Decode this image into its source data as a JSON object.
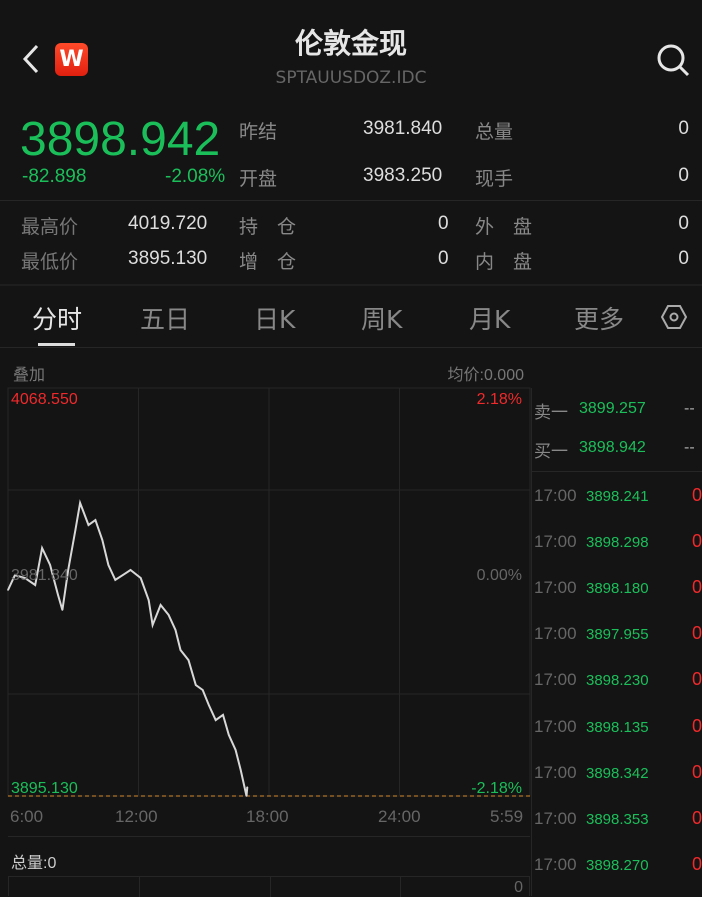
{
  "header": {
    "title": "伦敦金现",
    "code": "SPTAUUSDOZ.IDC",
    "logo": "W",
    "back_icon": "chevron-left-icon",
    "search_icon": "search-icon"
  },
  "quote": {
    "price": "3898.942",
    "change": "-82.898",
    "change_pct": "-2.08%",
    "prev_close_label": "昨结",
    "prev_close": "3981.840",
    "open_label": "开盘",
    "open": "3983.250",
    "volume_label": "总量",
    "volume": "0",
    "last_vol_label": "现手",
    "last_vol": "0",
    "high_label": "最高价",
    "high": "4019.720",
    "low_label": "最低价",
    "low": "3895.130",
    "oi_label": "持　仓",
    "oi": "0",
    "oi_chg_label": "增　仓",
    "oi_chg": "0",
    "outer_label": "外　盘",
    "outer": "0",
    "inner_label": "内　盘",
    "inner": "0"
  },
  "tabs": [
    {
      "label": "分时",
      "active": true
    },
    {
      "label": "五日"
    },
    {
      "label": "日K"
    },
    {
      "label": "周K"
    },
    {
      "label": "月K"
    },
    {
      "label": "更多"
    }
  ],
  "settings_icon": "hexagon-settings-icon",
  "chart_bar": {
    "overlay": "叠加",
    "avg": "均价:0.000"
  },
  "chart_data": {
    "type": "line",
    "ylim": [
      3895.13,
      4068.55
    ],
    "ref": 3981.84,
    "y_labels": {
      "top": "4068.550",
      "mid": "3981.840",
      "bottom": "3895.130",
      "top_pct": "2.18%",
      "mid_pct": "0.00%",
      "bottom_pct": "-2.18%"
    },
    "x_ticks": [
      "6:00",
      "12:00",
      "18:00",
      "24:00",
      "5:59"
    ],
    "x": [
      "6:00",
      "6:19",
      "6:47",
      "7:15",
      "7:34",
      "7:56",
      "8:18",
      "8:30",
      "8:46",
      "9:06",
      "9:19",
      "9:42",
      "10:01",
      "10:20",
      "10:37",
      "10:56",
      "11:16",
      "11:38",
      "12:06",
      "12:28",
      "12:39",
      "13:01",
      "13:23",
      "13:42",
      "13:56",
      "14:18",
      "14:38",
      "14:57",
      "15:14",
      "15:33",
      "15:53",
      "16:09",
      "16:28",
      "16:42",
      "16:58",
      "17:00"
    ],
    "y": [
      3982.7,
      3989.0,
      3987.8,
      3984.8,
      4000.5,
      3993.3,
      3980.6,
      3974.2,
      3991.2,
      4008.2,
      4019.7,
      4010.3,
      4012.4,
      4004.0,
      3993.3,
      3987.0,
      3989.0,
      3991.2,
      3987.8,
      3978.4,
      3967.8,
      3976.3,
      3972.1,
      3965.7,
      3957.2,
      3952.9,
      3942.3,
      3940.2,
      3933.8,
      3927.4,
      3929.6,
      3921.1,
      3914.7,
      3906.2,
      3895.13,
      3898.9
    ],
    "line_color": "#d8d8d8",
    "up_color": "#f0292b",
    "down_color": "#1bbf5a"
  },
  "volume": {
    "label": "总量:0",
    "axis_value": "0"
  },
  "order_book": {
    "ask_label": "卖一",
    "ask": "3899.257",
    "ask_vol": "--",
    "bid_label": "买一",
    "bid": "3898.942",
    "bid_vol": "--"
  },
  "trades": [
    {
      "time": "17:00",
      "price": "3898.241",
      "vol": "0"
    },
    {
      "time": "17:00",
      "price": "3898.298",
      "vol": "0"
    },
    {
      "time": "17:00",
      "price": "3898.180",
      "vol": "0"
    },
    {
      "time": "17:00",
      "price": "3897.955",
      "vol": "0"
    },
    {
      "time": "17:00",
      "price": "3898.230",
      "vol": "0"
    },
    {
      "time": "17:00",
      "price": "3898.135",
      "vol": "0"
    },
    {
      "time": "17:00",
      "price": "3898.342",
      "vol": "0"
    },
    {
      "time": "17:00",
      "price": "3898.353",
      "vol": "0"
    },
    {
      "time": "17:00",
      "price": "3898.270",
      "vol": "0"
    }
  ]
}
